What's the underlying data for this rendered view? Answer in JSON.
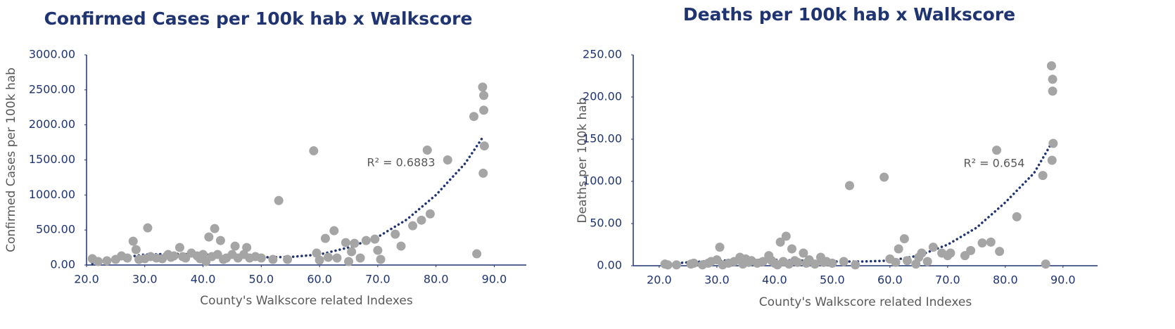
{
  "chart_data": [
    {
      "type": "scatter",
      "title": "Confirmed Cases per 100k hab x Walkscore",
      "xlabel": "County's Walkscore related Indexes",
      "ylabel": "Confirmed Cases per 100k hab",
      "color": "#a5a5a5",
      "x": [
        21,
        22,
        23.5,
        25,
        26,
        27,
        28,
        28.5,
        29,
        30,
        30.5,
        31,
        32,
        33,
        34,
        34.5,
        35,
        36,
        36.5,
        37,
        38,
        39,
        39.5,
        40,
        40.5,
        41,
        41.5,
        42,
        42.5,
        43,
        43.5,
        44,
        45,
        45.5,
        46,
        47,
        47.5,
        48,
        49,
        50,
        52,
        53,
        54.5,
        59,
        59.5,
        60,
        61,
        61.5,
        62.5,
        63,
        64.5,
        65,
        65.5,
        66,
        67,
        68,
        69.5,
        70,
        70.5,
        73,
        74,
        76,
        77.5,
        78.5,
        79,
        82,
        86.5,
        87,
        88,
        88.2,
        88.2,
        88.3,
        88.1
      ],
      "values": [
        90,
        50,
        60,
        80,
        130,
        100,
        340,
        220,
        80,
        90,
        530,
        120,
        100,
        90,
        150,
        110,
        130,
        250,
        120,
        100,
        170,
        130,
        90,
        150,
        50,
        400,
        120,
        520,
        150,
        350,
        80,
        100,
        150,
        270,
        100,
        150,
        250,
        100,
        120,
        100,
        80,
        920,
        80,
        1630,
        170,
        70,
        380,
        110,
        490,
        100,
        320,
        50,
        190,
        310,
        100,
        350,
        370,
        210,
        80,
        440,
        270,
        560,
        640,
        1640,
        730,
        1500,
        2120,
        160,
        2540,
        2420,
        2210,
        1700,
        1310
      ],
      "trendline": {
        "color": "#1f3470",
        "x": [
          21,
          25,
          30,
          35,
          40,
          45,
          50,
          55,
          60,
          65,
          70,
          75,
          80,
          85,
          88
        ],
        "values": [
          20,
          90,
          150,
          160,
          150,
          130,
          110,
          115,
          150,
          250,
          400,
          650,
          1000,
          1450,
          1820
        ]
      },
      "annotations": [
        {
          "text": "R² = 0.6883"
        }
      ],
      "xlim": [
        20,
        95.5
      ],
      "ylim": [
        0,
        3000
      ],
      "xticks": [
        {
          "value": 20,
          "label": "20.0"
        },
        {
          "value": 30,
          "label": "30.0"
        },
        {
          "value": 40,
          "label": "40.0"
        },
        {
          "value": 50,
          "label": "50.0"
        },
        {
          "value": 60,
          "label": "60.0"
        },
        {
          "value": 70,
          "label": "70.0"
        },
        {
          "value": 80,
          "label": "80.0"
        },
        {
          "value": 90,
          "label": "90.0"
        }
      ],
      "yticks": [
        {
          "value": 0,
          "label": "0.00"
        },
        {
          "value": 500,
          "label": "500.00"
        },
        {
          "value": 1000,
          "label": "1000.00"
        },
        {
          "value": 1500,
          "label": "1500.00"
        },
        {
          "value": 2000,
          "label": "2000.00"
        },
        {
          "value": 2500,
          "label": "2500.00"
        },
        {
          "value": 3000,
          "label": "3000.00"
        }
      ]
    },
    {
      "type": "scatter",
      "title": "Deaths per 100k hab x Walkscore",
      "xlabel": "County's Walkscore related Indexes",
      "ylabel": "Deaths per 100k hab",
      "color": "#a5a5a5",
      "x": [
        21,
        21.5,
        23,
        25.5,
        26,
        27.5,
        28.5,
        29,
        30,
        30.5,
        31,
        32,
        33,
        34,
        34.5,
        35,
        35.5,
        36,
        37,
        38,
        39,
        39.5,
        40,
        40.5,
        41,
        41.5,
        42,
        42.5,
        43,
        43.5,
        44,
        45,
        45.5,
        46,
        47,
        48,
        48.5,
        49,
        50,
        52,
        53,
        54,
        59,
        60,
        61,
        61.5,
        62.5,
        63,
        64.5,
        65,
        65.5,
        66.5,
        67.5,
        69,
        70,
        70.5,
        73,
        74,
        76,
        77.5,
        78.5,
        79,
        82,
        86.5,
        87,
        88,
        88.2,
        88.2,
        88.3,
        88.1
      ],
      "values": [
        2,
        1,
        1,
        2,
        3,
        1,
        3,
        5,
        7,
        22,
        1,
        3,
        5,
        10,
        2,
        8,
        4,
        6,
        3,
        5,
        12,
        6,
        3,
        1,
        28,
        5,
        35,
        2,
        20,
        6,
        4,
        15,
        3,
        7,
        2,
        10,
        4,
        5,
        3,
        5,
        95,
        1,
        105,
        8,
        4,
        20,
        32,
        6,
        2,
        10,
        15,
        5,
        22,
        15,
        12,
        15,
        12,
        18,
        27,
        28,
        137,
        17,
        58,
        107,
        2,
        237,
        221,
        207,
        145,
        125
      ],
      "trendline": {
        "color": "#1f3470",
        "x": [
          21,
          25,
          30,
          35,
          40,
          45,
          50,
          55,
          60,
          65,
          70,
          75,
          80,
          85,
          88
        ],
        "values": [
          2,
          4,
          6,
          7,
          7,
          6,
          5,
          5,
          6,
          12,
          25,
          45,
          75,
          110,
          145
        ]
      },
      "annotations": [
        {
          "text": "R² = 0.654"
        }
      ],
      "xlim": [
        15.5,
        96
      ],
      "ylim": [
        0,
        250
      ],
      "xticks": [
        {
          "value": 20,
          "label": "20.0"
        },
        {
          "value": 30,
          "label": "30.0"
        },
        {
          "value": 40,
          "label": "40.0"
        },
        {
          "value": 50,
          "label": "50.0"
        },
        {
          "value": 60,
          "label": "60.0"
        },
        {
          "value": 70,
          "label": "70.0"
        },
        {
          "value": 80,
          "label": "80.0"
        },
        {
          "value": 90,
          "label": "90.0"
        }
      ],
      "yticks": [
        {
          "value": 0,
          "label": "0.00"
        },
        {
          "value": 50,
          "label": "50.00"
        },
        {
          "value": 100,
          "label": "100.00"
        },
        {
          "value": 150,
          "label": "150.00"
        },
        {
          "value": 200,
          "label": "200.00"
        },
        {
          "value": 250,
          "label": "250.00"
        }
      ]
    }
  ]
}
